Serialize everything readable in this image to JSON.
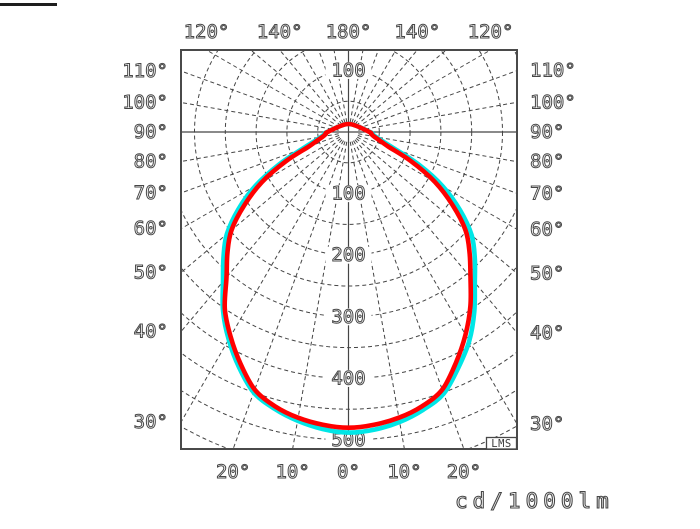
{
  "chart_data": {
    "type": "polar",
    "subtype": "luminous-intensity-distribution",
    "units_label": "cd/1000lm",
    "badge": "LMS",
    "grid_color": "#454545",
    "background": "#ffffff",
    "ring_step": 50,
    "ring_max": 600,
    "ring_labels_below": [
      "100",
      "200",
      "300",
      "400",
      "500"
    ],
    "ring_values_below": [
      100,
      200,
      300,
      400,
      500
    ],
    "ring_label_above": "100",
    "ring_value_above": 100,
    "ray_step_deg": 10,
    "left_labels": [
      {
        "angle": 110,
        "text": "110°"
      },
      {
        "angle": 100,
        "text": "100°"
      },
      {
        "angle": 90,
        "text": "90°"
      },
      {
        "angle": 80,
        "text": "80°"
      },
      {
        "angle": 70,
        "text": "70°"
      },
      {
        "angle": 60,
        "text": "60°"
      },
      {
        "angle": 50,
        "text": "50°"
      },
      {
        "angle": 40,
        "text": "40°"
      },
      {
        "angle": 30,
        "text": "30°"
      }
    ],
    "right_labels": [
      {
        "angle": 110,
        "text": "110°"
      },
      {
        "angle": 100,
        "text": "100°"
      },
      {
        "angle": 90,
        "text": "90°"
      },
      {
        "angle": 80,
        "text": "80°"
      },
      {
        "angle": 70,
        "text": "70°"
      },
      {
        "angle": 60,
        "text": "60°"
      },
      {
        "angle": 50,
        "text": "50°"
      },
      {
        "angle": 40,
        "text": "40°"
      },
      {
        "angle": 30,
        "text": "30°"
      }
    ],
    "top_labels": [
      {
        "angle": 120,
        "side": -1,
        "text": "120°"
      },
      {
        "angle": 140,
        "side": -1,
        "text": "140°"
      },
      {
        "angle": 180,
        "side": 0,
        "text": "180°"
      },
      {
        "angle": 140,
        "side": 1,
        "text": "140°"
      },
      {
        "angle": 120,
        "side": 1,
        "text": "120°"
      }
    ],
    "bottom_labels": [
      {
        "angle": 20,
        "side": -1,
        "text": "20°"
      },
      {
        "angle": 10,
        "side": -1,
        "text": "10°"
      },
      {
        "angle": 0,
        "side": 0,
        "text": "0°"
      },
      {
        "angle": 10,
        "side": 1,
        "text": "10°"
      },
      {
        "angle": 20,
        "side": 1,
        "text": "20°"
      }
    ],
    "gamma_deg": [
      -90,
      -85,
      -80,
      -75,
      -70,
      -65,
      -60,
      -55,
      -50,
      -45,
      -40,
      -35,
      -30,
      -25,
      -20,
      -15,
      -10,
      -5,
      0,
      5,
      10,
      15,
      20,
      25,
      30,
      35,
      40,
      45,
      50,
      55,
      60,
      65,
      70,
      75,
      80,
      85,
      90
    ],
    "series": [
      {
        "id": "cyan-curve",
        "color": "#00e6e6",
        "values": [
          35,
          39,
          45,
          57,
          80,
          124,
          174,
          218,
          258,
          287,
          317,
          355,
          389,
          421,
          450,
          465,
          476,
          484,
          488,
          485,
          478,
          467,
          452,
          422,
          392,
          356,
          319,
          290,
          261,
          221,
          177,
          127,
          80,
          57,
          45,
          39,
          35
        ]
      },
      {
        "id": "red-curve",
        "color": "#ff0000",
        "values": [
          34,
          37,
          42,
          52,
          68,
          112,
          162,
          206,
          248,
          278,
          308,
          350,
          383,
          415,
          445,
          461,
          471,
          477,
          480,
          477,
          471,
          461,
          445,
          413,
          380,
          345,
          308,
          278,
          248,
          206,
          162,
          112,
          68,
          52,
          42,
          37,
          34
        ]
      }
    ]
  }
}
